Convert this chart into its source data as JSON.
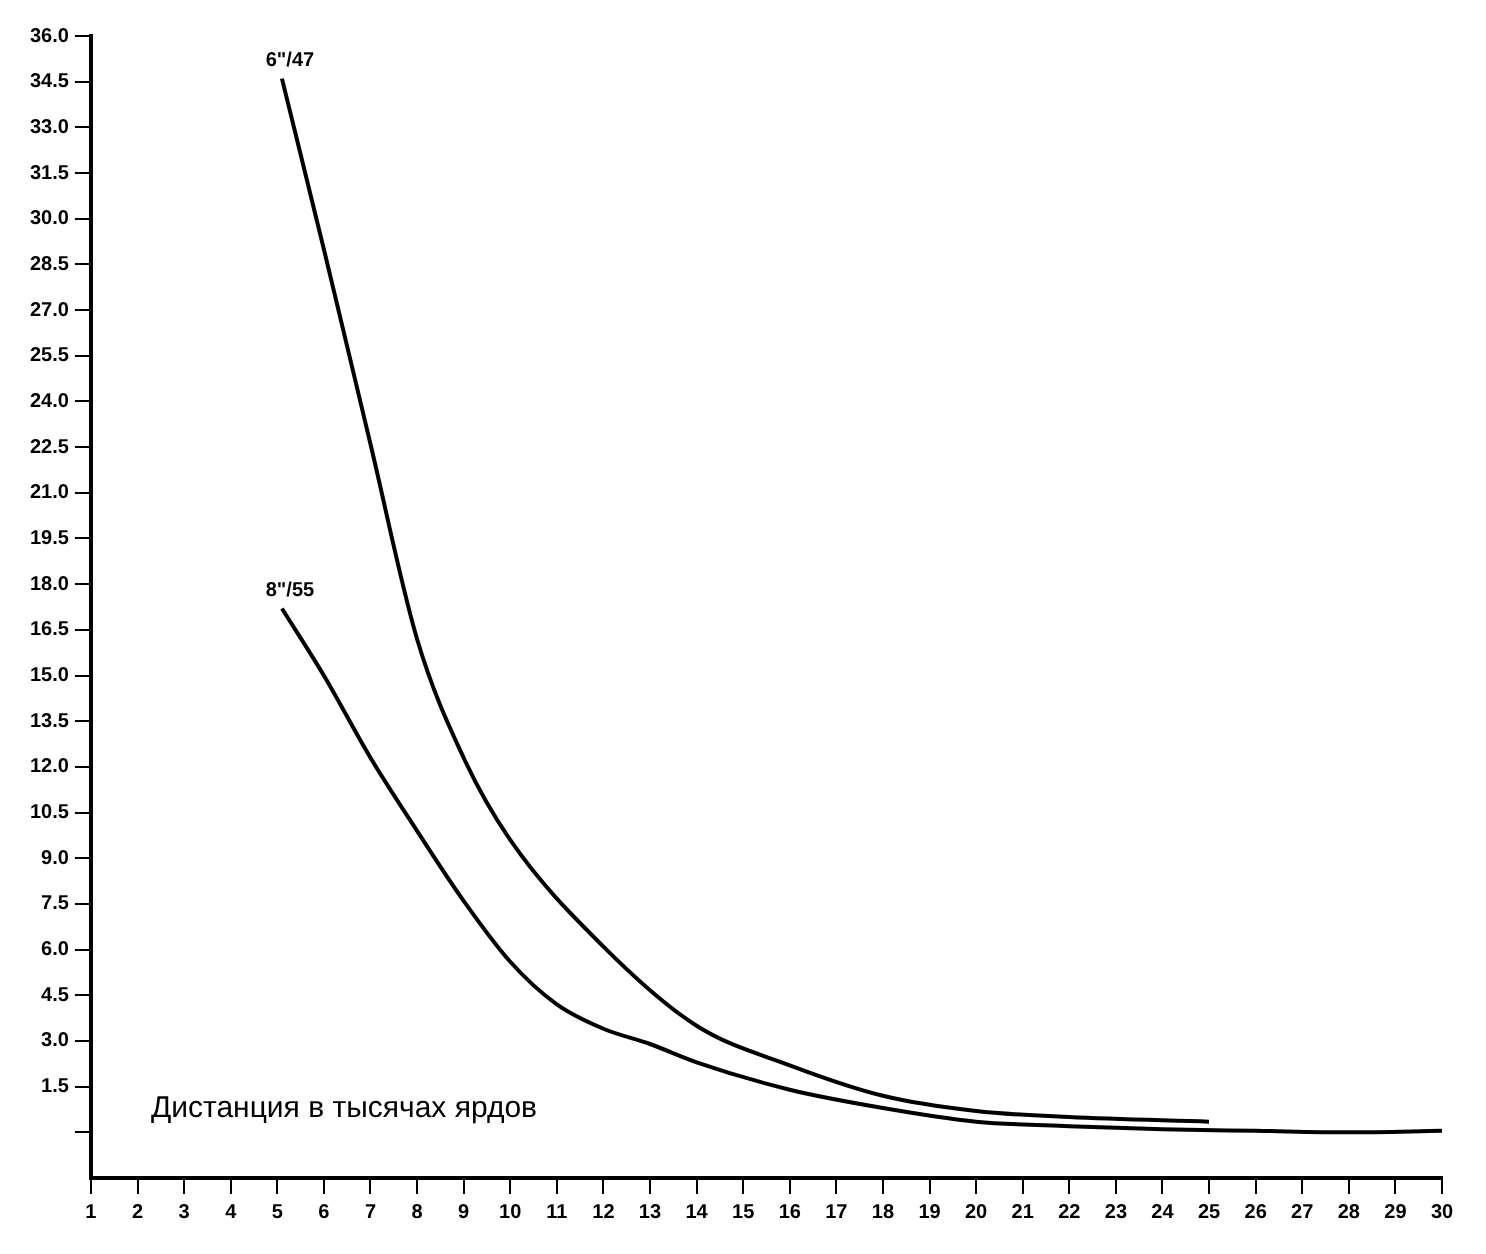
{
  "chart_data": {
    "type": "line",
    "xlabel": "Дистанция в тысячах ярдов",
    "xlim": [
      1,
      30
    ],
    "xticks": [
      1,
      2,
      3,
      4,
      5,
      6,
      7,
      8,
      9,
      10,
      11,
      12,
      13,
      14,
      15,
      16,
      17,
      18,
      19,
      20,
      21,
      22,
      23,
      24,
      25,
      26,
      27,
      28,
      29,
      30
    ],
    "ylim": [
      -1.5,
      36
    ],
    "yticks": [
      {
        "value": 0,
        "label": null
      },
      {
        "value": 1.5,
        "label": "1.5"
      },
      {
        "value": 3,
        "label": "3.0"
      },
      {
        "value": 4.5,
        "label": "4.5"
      },
      {
        "value": 6,
        "label": "6.0"
      },
      {
        "value": 7.5,
        "label": "7.5"
      },
      {
        "value": 9,
        "label": "9.0"
      },
      {
        "value": 10.5,
        "label": "10.5"
      },
      {
        "value": 12,
        "label": "12.0"
      },
      {
        "value": 13.5,
        "label": "13.5"
      },
      {
        "value": 15,
        "label": "15.0"
      },
      {
        "value": 16.5,
        "label": "16.5"
      },
      {
        "value": 18,
        "label": "18.0"
      },
      {
        "value": 19.5,
        "label": "19.5"
      },
      {
        "value": 21,
        "label": "21.0"
      },
      {
        "value": 22.5,
        "label": "22.5"
      },
      {
        "value": 24,
        "label": "24.0"
      },
      {
        "value": 25.5,
        "label": "25.5"
      },
      {
        "value": 27,
        "label": "27.0"
      },
      {
        "value": 28.5,
        "label": "28.5"
      },
      {
        "value": 30,
        "label": "30.0"
      },
      {
        "value": 31.5,
        "label": "31.5"
      },
      {
        "value": 33,
        "label": "33.0"
      },
      {
        "value": 34.5,
        "label": "34.5"
      },
      {
        "value": 36,
        "label": "36.0"
      }
    ],
    "grid": false,
    "legend": false,
    "marker": "none",
    "line_style": "solid",
    "series": [
      {
        "name": "6\"/47",
        "color": "#000000",
        "x": [
          5.1,
          6,
          7,
          8,
          9,
          10,
          12,
          14,
          16,
          18,
          20,
          22,
          25
        ],
        "values": [
          34.6,
          29.0,
          22.6,
          16.2,
          12.3,
          9.6,
          6.1,
          3.5,
          2.2,
          1.2,
          0.7,
          0.5,
          0.35
        ]
      },
      {
        "name": "8\"/55",
        "color": "#000000",
        "x": [
          5.1,
          6,
          7,
          8,
          9,
          10,
          11,
          12,
          13,
          14,
          16,
          18,
          20,
          22,
          24,
          26,
          28,
          30
        ],
        "values": [
          17.2,
          15.0,
          12.3,
          9.9,
          7.6,
          5.6,
          4.2,
          3.4,
          2.9,
          2.3,
          1.4,
          0.8,
          0.35,
          0.2,
          0.1,
          0.05,
          0,
          0.05
        ]
      }
    ]
  }
}
